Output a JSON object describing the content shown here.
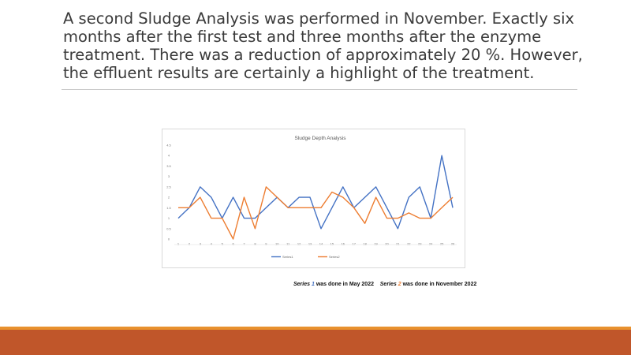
{
  "slide": {
    "title": "A second Sludge Analysis was performed in November. Exactly six months after the first test and three months after the enzyme treatment. There was a reduction of approximately 20 %. However, the effluent results are certainly a highlight of the treatment.",
    "caption": {
      "series1_word": "Series",
      "series1_num": "1",
      "series1_rest": " was done in May 2022",
      "series2_word": "Series",
      "series2_num": "2",
      "series2_rest": " was done in November 2022"
    },
    "colors": {
      "accent_bar": "#c0562a",
      "accent_thin": "#e8912e",
      "series1": "#4472c4",
      "series2": "#ed7d31"
    }
  },
  "chart_data": {
    "type": "line",
    "title": "Sludge Depth Analysis",
    "xlabel": "",
    "ylabel": "",
    "categories": [
      "1",
      "2",
      "3",
      "4",
      "5",
      "6",
      "7",
      "8",
      "9",
      "10",
      "11",
      "12",
      "13",
      "14",
      "15",
      "16",
      "17",
      "18",
      "19",
      "20",
      "21",
      "22",
      "23",
      "24",
      "25",
      "26"
    ],
    "yticks": [
      "0",
      "0.5",
      "1",
      "1.5",
      "2",
      "2.5",
      "3",
      "3.5",
      "4",
      "4.5"
    ],
    "ylim": [
      0,
      4.5
    ],
    "grid": false,
    "legend": "bottom",
    "series": [
      {
        "name": "Series1",
        "color": "#4472c4",
        "values": [
          1,
          1.5,
          2.5,
          2,
          1,
          2,
          1,
          1,
          1.5,
          2,
          1.5,
          2,
          2,
          0.5,
          1.5,
          2.5,
          1.5,
          2,
          2.5,
          1.5,
          0.5,
          2,
          2.5,
          1,
          4,
          1.5
        ]
      },
      {
        "name": "Series2",
        "color": "#ed7d31",
        "values": [
          1.5,
          1.5,
          2,
          1,
          1,
          0,
          2,
          0.5,
          2.5,
          2,
          1.5,
          1.5,
          1.5,
          1.5,
          2.25,
          2,
          1.5,
          0.75,
          2,
          1,
          1,
          1.25,
          1,
          1,
          1.5,
          2
        ]
      }
    ]
  }
}
